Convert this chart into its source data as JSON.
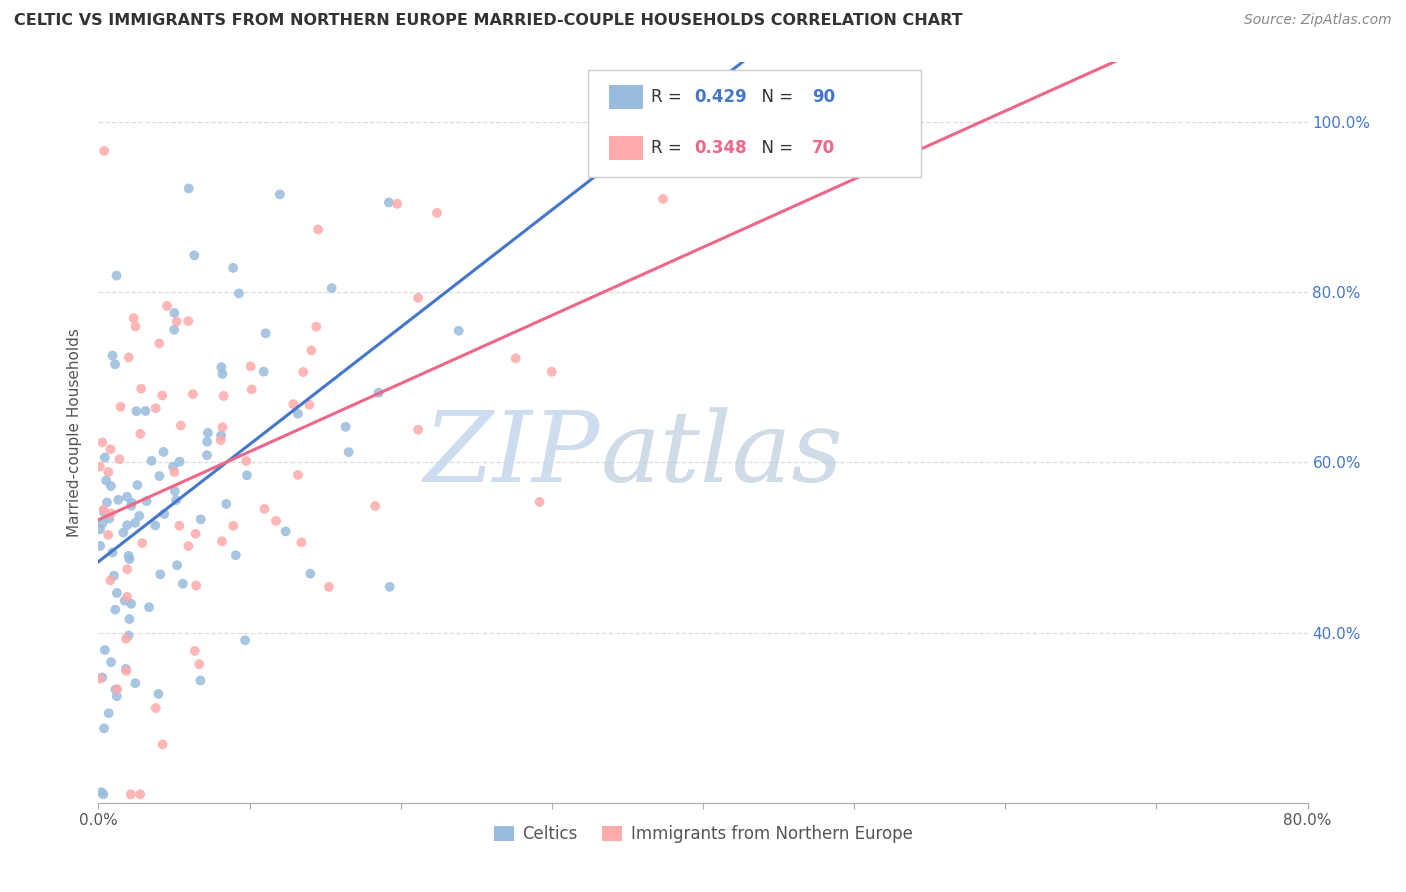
{
  "title": "CELTIC VS IMMIGRANTS FROM NORTHERN EUROPE MARRIED-COUPLE HOUSEHOLDS CORRELATION CHART",
  "source": "Source: ZipAtlas.com",
  "ylabel": "Married-couple Households",
  "xlim": [
    0.0,
    0.8
  ],
  "ylim": [
    0.2,
    1.07
  ],
  "xtick_pos": [
    0.0,
    0.1,
    0.2,
    0.3,
    0.4,
    0.5,
    0.6,
    0.7,
    0.8
  ],
  "xticklabels": [
    "0.0%",
    "",
    "",
    "",
    "",
    "",
    "",
    "",
    "80.0%"
  ],
  "ytick_positions": [
    0.4,
    0.6,
    0.8,
    1.0
  ],
  "yticklabels_right": [
    "40.0%",
    "60.0%",
    "80.0%",
    "100.0%"
  ],
  "blue_color": "#99BBDD",
  "pink_color": "#FFAAAA",
  "blue_line_color": "#4477CC",
  "pink_line_color": "#EE6688",
  "R_blue": 0.429,
  "N_blue": 90,
  "R_pink": 0.348,
  "N_pink": 70,
  "legend_label_blue": "Celtics",
  "legend_label_pink": "Immigrants from Northern Europe",
  "watermark_zip": "ZIP",
  "watermark_atlas": "atlas",
  "grid_color": "#DDDDDD",
  "blue_scatter_seed": 42,
  "pink_scatter_seed": 99
}
